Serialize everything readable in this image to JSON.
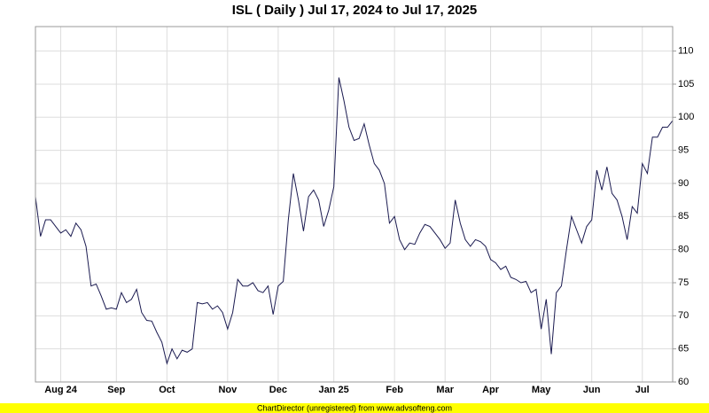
{
  "chart_data": {
    "type": "line",
    "title": "ISL ( Daily ) Jul 17, 2024 to Jul 17, 2025",
    "footer": "ChartDirector (unregistered) from www.advsofteng.com",
    "categories": [
      null,
      null,
      null,
      null,
      null,
      "Aug 24",
      null,
      null,
      null,
      null,
      null,
      null,
      null,
      null,
      null,
      null,
      "Sep",
      null,
      null,
      null,
      null,
      null,
      null,
      null,
      null,
      null,
      "Oct",
      null,
      null,
      null,
      null,
      null,
      null,
      null,
      null,
      null,
      null,
      null,
      "Nov",
      null,
      null,
      null,
      null,
      null,
      null,
      null,
      null,
      null,
      "Dec",
      null,
      null,
      null,
      null,
      null,
      null,
      null,
      null,
      null,
      null,
      "Jan 25",
      null,
      null,
      null,
      null,
      null,
      null,
      null,
      null,
      null,
      null,
      null,
      "Feb",
      null,
      null,
      null,
      null,
      null,
      null,
      null,
      null,
      null,
      "Mar",
      null,
      null,
      null,
      null,
      null,
      null,
      null,
      null,
      "Apr",
      null,
      null,
      null,
      null,
      null,
      null,
      null,
      null,
      null,
      "May",
      null,
      null,
      null,
      null,
      null,
      null,
      null,
      null,
      null,
      "Jun",
      null,
      null,
      null,
      null,
      null,
      null,
      null,
      null,
      null,
      "Jul",
      null,
      null,
      null,
      null,
      null,
      null
    ],
    "series": [
      {
        "color": "#1a1a50",
        "values": [
          88,
          82,
          84.5,
          84.5,
          83.5,
          82.5,
          83,
          82,
          84,
          83,
          80.5,
          74.5,
          74.8,
          73,
          71,
          71.2,
          71,
          73.5,
          72,
          72.5,
          74,
          70.5,
          69.3,
          69.2,
          67.5,
          66,
          62.8,
          65,
          63.5,
          64.8,
          64.5,
          65,
          72,
          71.8,
          72,
          71,
          71.5,
          70.5,
          68,
          70.5,
          75.5,
          74.5,
          74.5,
          75,
          73.8,
          73.5,
          74.5,
          70.2,
          74.5,
          75.2,
          84.5,
          91.5,
          87.5,
          82.8,
          88,
          89,
          87.5,
          83.5,
          86,
          89.5,
          106,
          102.5,
          98.5,
          96.5,
          96.8,
          99,
          95.8,
          93,
          92,
          90,
          84,
          85,
          81.5,
          80,
          81,
          80.8,
          82.5,
          83.8,
          83.5,
          82.5,
          81.5,
          80.2,
          81,
          87.5,
          84,
          81.5,
          80.5,
          81.5,
          81.2,
          80.5,
          78.5,
          78,
          77,
          77.5,
          75.8,
          75.5,
          75,
          75.2,
          73.5,
          74,
          68,
          72.5,
          64.2,
          73.5,
          74.5,
          80,
          85,
          83,
          81,
          83.5,
          84.5,
          92,
          89,
          92.5,
          88.5,
          87.5,
          85,
          81.5,
          86.5,
          85.5,
          93,
          91.5,
          97,
          97,
          98.5,
          98.5,
          99.5
        ]
      }
    ],
    "ylim": [
      60,
      113.7
    ],
    "yticks": [
      60,
      65,
      70,
      75,
      80,
      85,
      90,
      95,
      100,
      105,
      110
    ],
    "grid": true
  }
}
